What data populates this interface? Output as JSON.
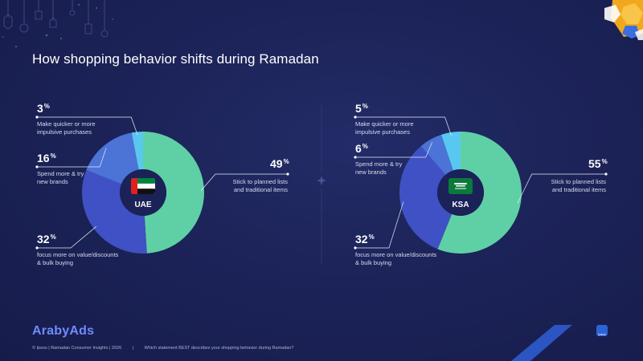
{
  "title": "How shopping behavior shifts during Ramadan",
  "brand": "ArabyAds",
  "ipsos_logo_text": "Ipsos",
  "footer": {
    "source": "© Ipsos | Ramadan Consumer Insights | 2026",
    "divider": "|",
    "question": "Which statement BEST describes your shopping behavior during Ramadan?"
  },
  "colors": {
    "planned": "#5fd0a5",
    "value": "#3f51c4",
    "brands": "#4c73d6",
    "impulsive": "#58c8f0"
  },
  "chart_data": [
    {
      "type": "pie",
      "donut": true,
      "center_label": "UAE",
      "flag_icon": "uae-flag-icon",
      "slices": [
        {
          "key": "planned",
          "value": 49,
          "pct_label": "49%",
          "label": "Stick to planned lists and traditional items",
          "label_lines": [
            "Stick to planned lists",
            "and traditional items"
          ]
        },
        {
          "key": "value",
          "value": 32,
          "pct_label": "32%",
          "label": "focus more on value/discounts & bulk buying",
          "label_lines": [
            "focus more on value/discounts",
            "& bulk buying"
          ]
        },
        {
          "key": "brands",
          "value": 16,
          "pct_label": "16%",
          "label": "Spend more & try new brands",
          "label_lines": [
            "Spend more & try",
            "new brands"
          ]
        },
        {
          "key": "impulsive",
          "value": 3,
          "pct_label": "3%",
          "label": "Make quicker or more impulsive purchases",
          "label_lines": [
            "Make quicker or more",
            "impulsive purchases"
          ]
        }
      ]
    },
    {
      "type": "pie",
      "donut": true,
      "center_label": "KSA",
      "flag_icon": "ksa-flag-icon",
      "slices": [
        {
          "key": "planned",
          "value": 55,
          "pct_label": "55%",
          "label": "Stick to planned lists and traditional items",
          "label_lines": [
            "Stick to planned lists",
            "and traditional items"
          ]
        },
        {
          "key": "value",
          "value": 32,
          "pct_label": "32%",
          "label": "focus more on value/discounts & bulk buying",
          "label_lines": [
            "focus more on value/discounts",
            "& bulk buying"
          ]
        },
        {
          "key": "brands",
          "value": 6,
          "pct_label": "6%",
          "label": "Spend more & try new brands",
          "label_lines": [
            "Spend more & try",
            "new brands"
          ]
        },
        {
          "key": "impulsive",
          "value": 5,
          "pct_label": "5%",
          "label": "Make quicker or more impulsive purchases",
          "label_lines": [
            "Make quicker or more",
            "impulsive purchases"
          ]
        }
      ]
    }
  ]
}
